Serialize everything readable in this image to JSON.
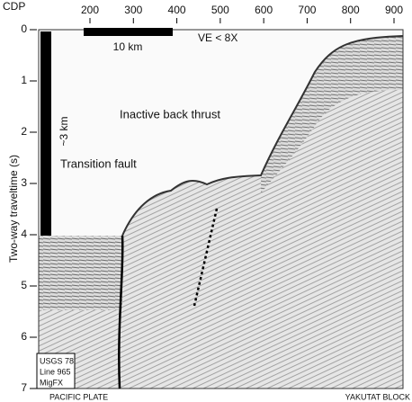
{
  "axes": {
    "x_label": "CDP",
    "x_ticks": [
      200,
      300,
      400,
      500,
      600,
      700,
      800,
      900
    ],
    "y_label": "Two-way traveltime (s)",
    "y_ticks": [
      0,
      1,
      2,
      3,
      4,
      5,
      6,
      7
    ]
  },
  "horizontal_scale": "10 km",
  "vertical_scale": "~3 km",
  "vertical_exaggeration": "VE < 8X",
  "annotations": [
    "Inactive back thrust",
    "Transition fault"
  ],
  "info_box": [
    "USGS 78",
    "Line 965",
    "MigFX"
  ],
  "bottom_labels": [
    "PACIFIC PLATE",
    "YAKUTAT BLOCK"
  ]
}
